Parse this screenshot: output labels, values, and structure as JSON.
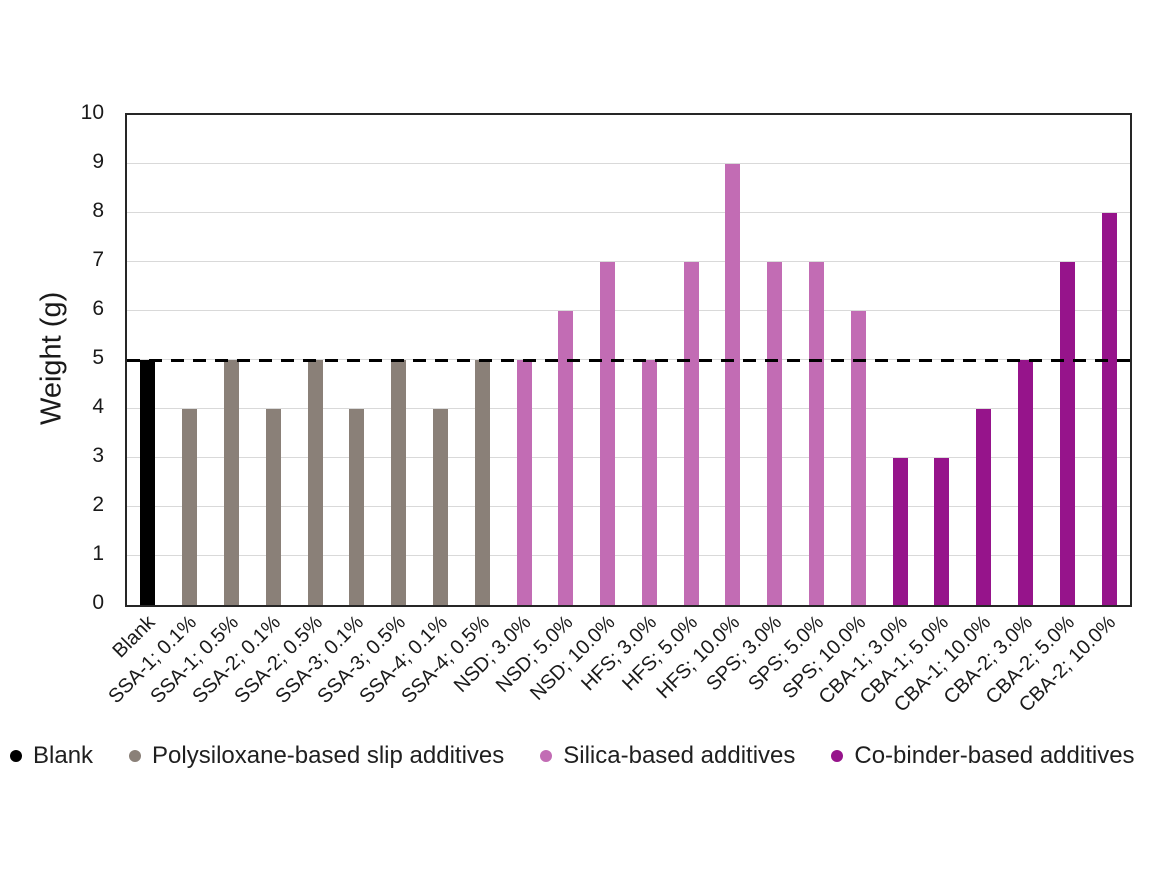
{
  "chart_data": {
    "type": "bar",
    "title": "",
    "xlabel": "",
    "ylabel": "Weight (g)",
    "ylim": [
      0,
      10
    ],
    "yticks": [
      0,
      1,
      2,
      3,
      4,
      5,
      6,
      7,
      8,
      9,
      10
    ],
    "grid": "horizontal",
    "gridline_color": "#d9d9d9",
    "axis_border_color": "#262626",
    "reference_line": {
      "value": 5,
      "style": "dashed",
      "color": "#000000"
    },
    "legend_position": "bottom",
    "legend": [
      {
        "key": "blank",
        "label": "Blank",
        "color": "#000000"
      },
      {
        "key": "polysiloxane",
        "label": "Polysiloxane-based slip additives",
        "color": "#8a8078"
      },
      {
        "key": "silica",
        "label": "Silica-based additives",
        "color": "#c26cb4"
      },
      {
        "key": "cobinder",
        "label": "Co-binder-based additives",
        "color": "#96148b"
      }
    ],
    "bars": [
      {
        "label": "Blank",
        "value": 5,
        "group": "blank"
      },
      {
        "label": "SSA-1; 0.1%",
        "value": 4,
        "group": "polysiloxane"
      },
      {
        "label": "SSA-1; 0.5%",
        "value": 5,
        "group": "polysiloxane"
      },
      {
        "label": "SSA-2; 0.1%",
        "value": 4,
        "group": "polysiloxane"
      },
      {
        "label": "SSA-2; 0.5%",
        "value": 5,
        "group": "polysiloxane"
      },
      {
        "label": "SSA-3; 0.1%",
        "value": 4,
        "group": "polysiloxane"
      },
      {
        "label": "SSA-3; 0.5%",
        "value": 5,
        "group": "polysiloxane"
      },
      {
        "label": "SSA-4; 0.1%",
        "value": 4,
        "group": "polysiloxane"
      },
      {
        "label": "SSA-4; 0.5%",
        "value": 5,
        "group": "polysiloxane"
      },
      {
        "label": "NSD; 3.0%",
        "value": 5,
        "group": "silica"
      },
      {
        "label": "NSD; 5.0%",
        "value": 6,
        "group": "silica"
      },
      {
        "label": "NSD; 10.0%",
        "value": 7,
        "group": "silica"
      },
      {
        "label": "HFS; 3.0%",
        "value": 5,
        "group": "silica"
      },
      {
        "label": "HFS; 5.0%",
        "value": 7,
        "group": "silica"
      },
      {
        "label": "HFS; 10.0%",
        "value": 9,
        "group": "silica"
      },
      {
        "label": "SPS; 3.0%",
        "value": 7,
        "group": "silica"
      },
      {
        "label": "SPS; 5.0%",
        "value": 7,
        "group": "silica"
      },
      {
        "label": "SPS; 10.0%",
        "value": 6,
        "group": "silica"
      },
      {
        "label": "CBA-1; 3.0%",
        "value": 3,
        "group": "cobinder"
      },
      {
        "label": "CBA-1; 5.0%",
        "value": 3,
        "group": "cobinder"
      },
      {
        "label": "CBA-1; 10.0%",
        "value": 4,
        "group": "cobinder"
      },
      {
        "label": "CBA-2; 3.0%",
        "value": 5,
        "group": "cobinder"
      },
      {
        "label": "CBA-2; 5.0%",
        "value": 7,
        "group": "cobinder"
      },
      {
        "label": "CBA-2; 10.0%",
        "value": 8,
        "group": "cobinder"
      }
    ]
  }
}
